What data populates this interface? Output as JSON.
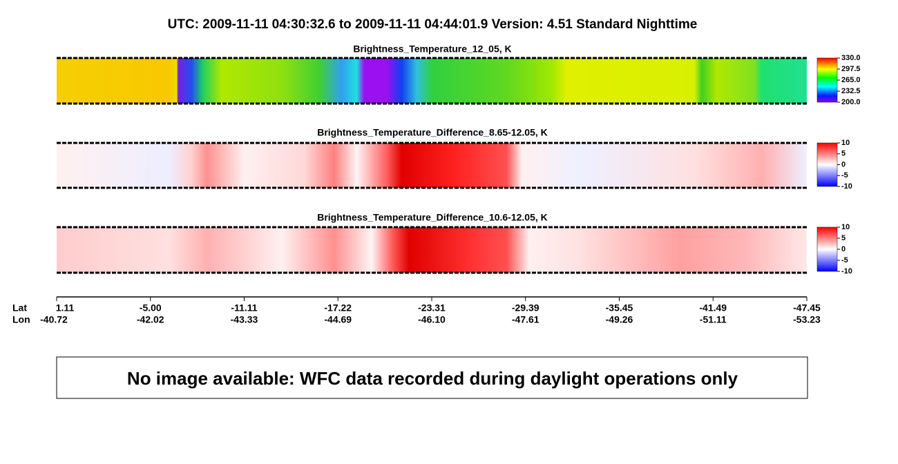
{
  "header": {
    "title": "UTC:  2009-11-11   04:30:32.6  to  2009-11-11   04:44:01.9    Version: 4.51  Standard Nighttime"
  },
  "panels": [
    {
      "title": "Brightness_Temperature_12_05, K",
      "lim": [
        200,
        330
      ],
      "ticks": [
        {
          "value": 330,
          "label": "330.0"
        },
        297.5,
        {
          "value": 265,
          "label": "265.0"
        },
        232.5,
        {
          "value": 200,
          "label": "200.0"
        }
      ]
    },
    {
      "title": "Brightness_Temperature_Difference_8.65-12.05, K",
      "lim": [
        -10,
        10
      ],
      "ticks": [
        10,
        5,
        0,
        -5,
        -10
      ]
    },
    {
      "title": "Brightness_Temperature_Difference_10.6-12.05, K",
      "lim": [
        -10,
        10
      ],
      "ticks": [
        10,
        5,
        0,
        -5,
        -10
      ]
    }
  ],
  "axis": {
    "lat_label": "Lat",
    "lon_label": "Lon",
    "lat": [
      "1.11",
      "-5.00",
      "-11.11",
      "-17.22",
      "-23.31",
      "-29.39",
      "-35.45",
      "-41.49",
      "-47.45"
    ],
    "lon": [
      "-40.72",
      "-42.02",
      "-43.33",
      "-44.69",
      "-46.10",
      "-47.61",
      "-49.26",
      "-51.11",
      "-53.23"
    ]
  },
  "message": "No image available: WFC data recorded during daylight operations only"
}
